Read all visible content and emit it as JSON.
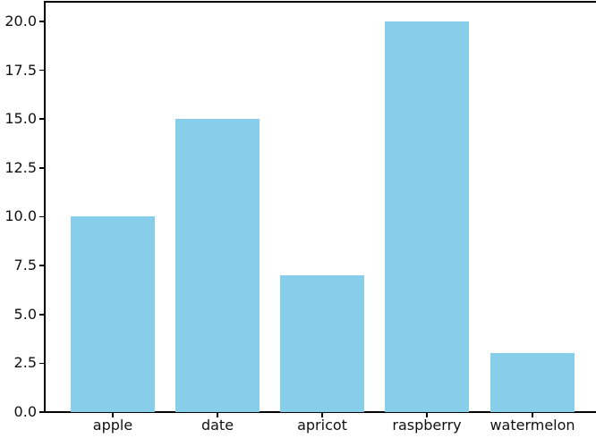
{
  "chart_data": {
    "type": "bar",
    "categories": [
      "apple",
      "date",
      "apricot",
      "raspberry",
      "watermelon"
    ],
    "values": [
      10,
      15,
      7,
      20,
      3
    ],
    "yticks": [
      0.0,
      2.5,
      5.0,
      7.5,
      10.0,
      12.5,
      15.0,
      17.5,
      20.0
    ],
    "ytick_labels": [
      "0.0",
      "2.5",
      "5.0",
      "7.5",
      "10.0",
      "12.5",
      "15.0",
      "17.5",
      "20.0"
    ],
    "ylim": [
      0,
      21
    ],
    "grid": false,
    "legend": null,
    "bar_color": "#87CEEB",
    "spine_color": "#000000",
    "tick_label_color": "#111111",
    "background_color": "#ffffff"
  }
}
